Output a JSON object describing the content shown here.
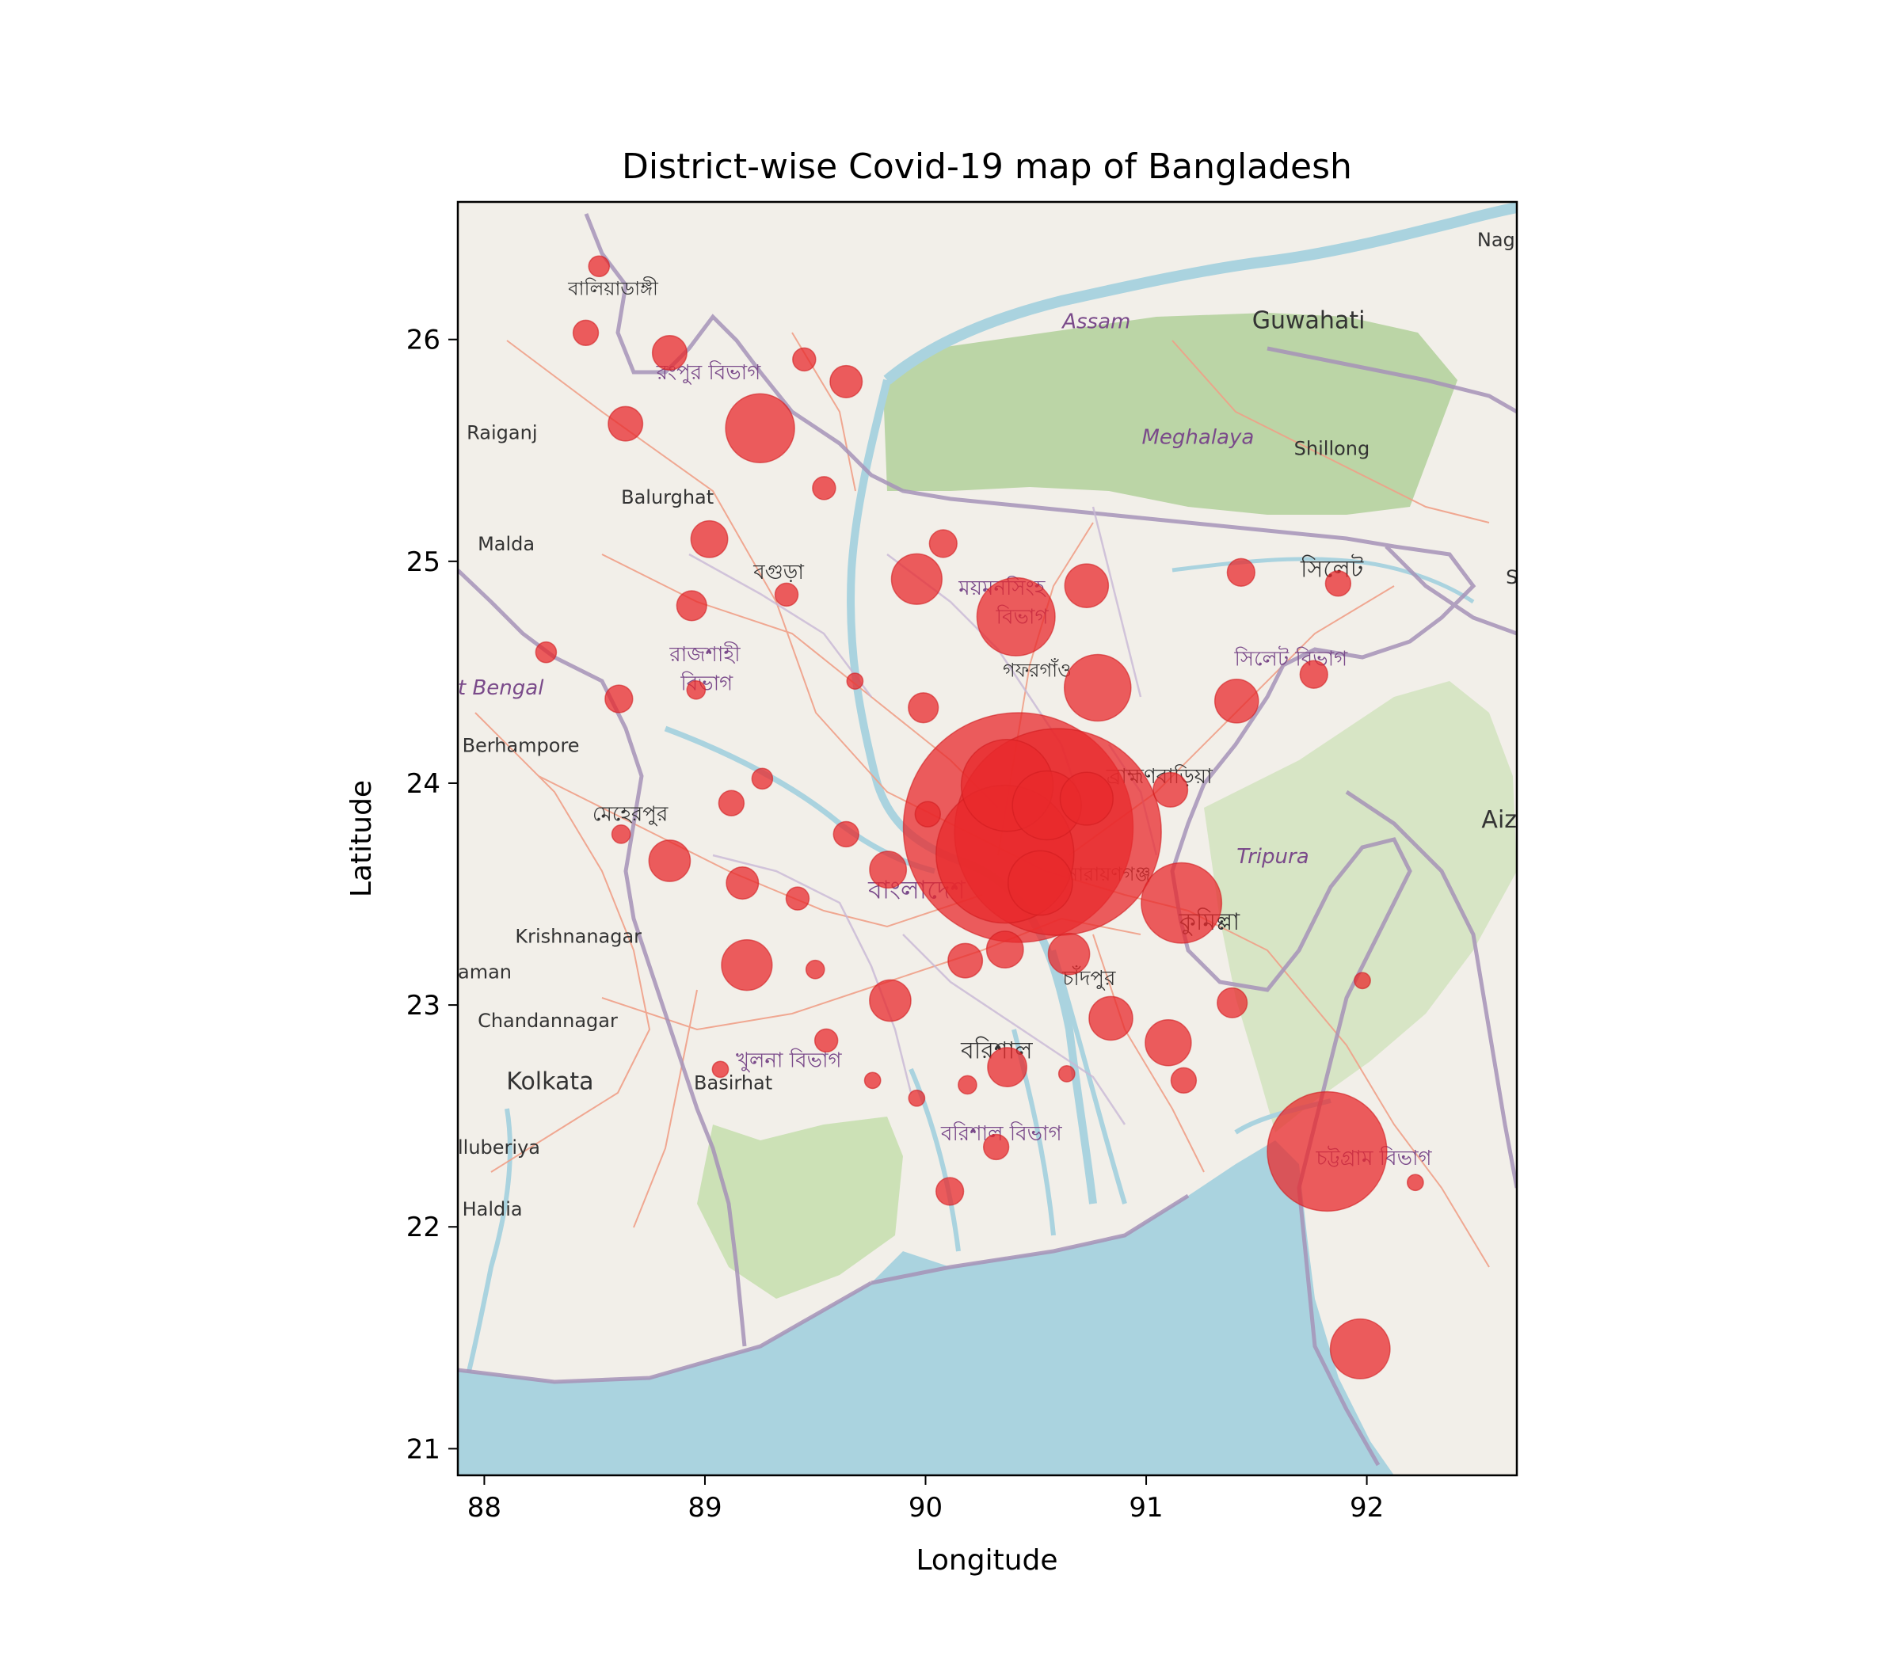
{
  "chart_data": {
    "type": "scatter",
    "title": "District-wise Covid-19 map of Bangladesh",
    "xlabel": "Longitude",
    "ylabel": "Latitude",
    "xlim": [
      87.88,
      92.68
    ],
    "ylim": [
      20.88,
      26.62
    ],
    "xticks": [
      88,
      89,
      90,
      91,
      92
    ],
    "yticks": [
      21,
      22,
      23,
      24,
      25,
      26
    ],
    "grid": false,
    "basemap": "OpenStreetMap tiles",
    "marker_color": "#e8292c",
    "marker_alpha": 0.75,
    "points": [
      {
        "lon": 88.52,
        "lat": 26.33,
        "size": 9
      },
      {
        "lon": 88.46,
        "lat": 26.03,
        "size": 11
      },
      {
        "lon": 88.84,
        "lat": 25.94,
        "size": 15
      },
      {
        "lon": 89.45,
        "lat": 25.91,
        "size": 10
      },
      {
        "lon": 89.64,
        "lat": 25.81,
        "size": 14
      },
      {
        "lon": 88.64,
        "lat": 25.62,
        "size": 15
      },
      {
        "lon": 89.25,
        "lat": 25.6,
        "size": 30
      },
      {
        "lon": 89.54,
        "lat": 25.33,
        "size": 10
      },
      {
        "lon": 89.02,
        "lat": 25.1,
        "size": 16
      },
      {
        "lon": 90.08,
        "lat": 25.08,
        "size": 12
      },
      {
        "lon": 89.96,
        "lat": 24.92,
        "size": 22
      },
      {
        "lon": 90.73,
        "lat": 24.89,
        "size": 19
      },
      {
        "lon": 91.43,
        "lat": 24.95,
        "size": 12
      },
      {
        "lon": 91.87,
        "lat": 24.9,
        "size": 11
      },
      {
        "lon": 89.37,
        "lat": 24.85,
        "size": 10
      },
      {
        "lon": 88.94,
        "lat": 24.8,
        "size": 13
      },
      {
        "lon": 90.41,
        "lat": 24.75,
        "size": 34
      },
      {
        "lon": 88.28,
        "lat": 24.59,
        "size": 9
      },
      {
        "lon": 91.76,
        "lat": 24.49,
        "size": 12
      },
      {
        "lon": 90.78,
        "lat": 24.43,
        "size": 29
      },
      {
        "lon": 88.96,
        "lat": 24.42,
        "size": 8
      },
      {
        "lon": 89.68,
        "lat": 24.46,
        "size": 7
      },
      {
        "lon": 88.61,
        "lat": 24.38,
        "size": 12
      },
      {
        "lon": 89.99,
        "lat": 24.34,
        "size": 13
      },
      {
        "lon": 91.41,
        "lat": 24.37,
        "size": 19
      },
      {
        "lon": 89.26,
        "lat": 24.02,
        "size": 9
      },
      {
        "lon": 90.37,
        "lat": 23.99,
        "size": 40
      },
      {
        "lon": 91.11,
        "lat": 23.97,
        "size": 15
      },
      {
        "lon": 90.73,
        "lat": 23.93,
        "size": 23
      },
      {
        "lon": 89.12,
        "lat": 23.91,
        "size": 11
      },
      {
        "lon": 90.01,
        "lat": 23.86,
        "size": 11
      },
      {
        "lon": 90.42,
        "lat": 23.8,
        "size": 100
      },
      {
        "lon": 90.55,
        "lat": 23.9,
        "size": 30
      },
      {
        "lon": 88.62,
        "lat": 23.77,
        "size": 8
      },
      {
        "lon": 89.64,
        "lat": 23.77,
        "size": 11
      },
      {
        "lon": 88.84,
        "lat": 23.65,
        "size": 18
      },
      {
        "lon": 89.83,
        "lat": 23.61,
        "size": 16
      },
      {
        "lon": 90.36,
        "lat": 23.68,
        "size": 60
      },
      {
        "lon": 90.6,
        "lat": 23.78,
        "size": 90
      },
      {
        "lon": 90.52,
        "lat": 23.55,
        "size": 28
      },
      {
        "lon": 89.17,
        "lat": 23.55,
        "size": 14
      },
      {
        "lon": 89.42,
        "lat": 23.48,
        "size": 10
      },
      {
        "lon": 91.16,
        "lat": 23.46,
        "size": 35
      },
      {
        "lon": 90.36,
        "lat": 23.25,
        "size": 16
      },
      {
        "lon": 90.65,
        "lat": 23.23,
        "size": 18
      },
      {
        "lon": 90.18,
        "lat": 23.2,
        "size": 15
      },
      {
        "lon": 89.19,
        "lat": 23.18,
        "size": 22
      },
      {
        "lon": 89.5,
        "lat": 23.16,
        "size": 8
      },
      {
        "lon": 91.98,
        "lat": 23.11,
        "size": 7
      },
      {
        "lon": 89.84,
        "lat": 23.02,
        "size": 18
      },
      {
        "lon": 91.39,
        "lat": 23.01,
        "size": 13
      },
      {
        "lon": 90.84,
        "lat": 22.94,
        "size": 19
      },
      {
        "lon": 91.1,
        "lat": 22.83,
        "size": 20
      },
      {
        "lon": 89.55,
        "lat": 22.84,
        "size": 10
      },
      {
        "lon": 90.37,
        "lat": 22.72,
        "size": 17
      },
      {
        "lon": 89.07,
        "lat": 22.71,
        "size": 7
      },
      {
        "lon": 90.64,
        "lat": 22.69,
        "size": 7
      },
      {
        "lon": 89.76,
        "lat": 22.66,
        "size": 7
      },
      {
        "lon": 91.17,
        "lat": 22.66,
        "size": 11
      },
      {
        "lon": 90.19,
        "lat": 22.64,
        "size": 8
      },
      {
        "lon": 89.96,
        "lat": 22.58,
        "size": 7
      },
      {
        "lon": 91.82,
        "lat": 22.34,
        "size": 52
      },
      {
        "lon": 90.32,
        "lat": 22.36,
        "size": 11
      },
      {
        "lon": 92.22,
        "lat": 22.2,
        "size": 7
      },
      {
        "lon": 90.11,
        "lat": 22.16,
        "size": 12
      },
      {
        "lon": 91.97,
        "lat": 21.45,
        "size": 26
      }
    ]
  },
  "map_labels": {
    "places": [
      {
        "text": "বালিয়াডাঙ্গী",
        "lon": 88.38,
        "lat": 26.2,
        "cls": "place-sm"
      },
      {
        "text": "রংপুর বিভাগ",
        "lon": 88.78,
        "lat": 25.82,
        "cls": "place-div"
      },
      {
        "text": "Raiganj",
        "lon": 87.92,
        "lat": 25.55,
        "cls": "place-sm"
      },
      {
        "text": "Balurghat",
        "lon": 88.62,
        "lat": 25.26,
        "cls": "place-sm"
      },
      {
        "text": "Malda",
        "lon": 87.97,
        "lat": 25.05,
        "cls": "place-sm"
      },
      {
        "text": "বগুড়া",
        "lon": 89.22,
        "lat": 24.92,
        "cls": "place-bn"
      },
      {
        "text": "রাজশাহী",
        "lon": 88.84,
        "lat": 24.55,
        "cls": "place-div"
      },
      {
        "text": "বিভাগ",
        "lon": 88.89,
        "lat": 24.42,
        "cls": "place-div"
      },
      {
        "text": "t Bengal",
        "lon": 87.88,
        "lat": 24.4,
        "cls": "place-reg"
      },
      {
        "text": "Berhampore",
        "lon": 87.9,
        "lat": 24.14,
        "cls": "place-sm"
      },
      {
        "text": "মেহেরপুর",
        "lon": 88.49,
        "lat": 23.83,
        "cls": "place-bn"
      },
      {
        "text": "Krishnanagar",
        "lon": 88.14,
        "lat": 23.28,
        "cls": "place-sm"
      },
      {
        "text": "aman",
        "lon": 87.88,
        "lat": 23.12,
        "cls": "place-sm"
      },
      {
        "text": "Chandannagar",
        "lon": 87.97,
        "lat": 22.9,
        "cls": "place-sm"
      },
      {
        "text": "Kolkata",
        "lon": 88.1,
        "lat": 22.62,
        "cls": "place-lg"
      },
      {
        "text": "Basirhat",
        "lon": 88.95,
        "lat": 22.62,
        "cls": "place-sm"
      },
      {
        "text": "lluberiya",
        "lon": 87.88,
        "lat": 22.33,
        "cls": "place-sm"
      },
      {
        "text": "Haldia",
        "lon": 87.9,
        "lat": 22.05,
        "cls": "place-sm"
      },
      {
        "text": "খুলনা বিভাগ",
        "lon": 89.14,
        "lat": 22.72,
        "cls": "place-div"
      },
      {
        "text": "বাংলাদেশ",
        "lon": 89.74,
        "lat": 23.48,
        "cls": "place-bd"
      },
      {
        "text": "ময়মনসিংহ",
        "lon": 90.15,
        "lat": 24.85,
        "cls": "place-div"
      },
      {
        "text": "বিভাগ",
        "lon": 90.32,
        "lat": 24.72,
        "cls": "place-div"
      },
      {
        "text": "গফরগাঁও",
        "lon": 90.35,
        "lat": 24.48,
        "cls": "place-sm"
      },
      {
        "text": "ব্রাহ্মণবাড়িয়া",
        "lon": 90.82,
        "lat": 24.0,
        "cls": "place-bn"
      },
      {
        "text": "নারায়ণগঞ্জ",
        "lon": 90.64,
        "lat": 23.56,
        "cls": "place-sm"
      },
      {
        "text": "কুমিল্লা",
        "lon": 91.15,
        "lat": 23.34,
        "cls": "place-lg"
      },
      {
        "text": "চাঁদপুর",
        "lon": 90.62,
        "lat": 23.09,
        "cls": "place-bn"
      },
      {
        "text": "বরিশাল",
        "lon": 90.16,
        "lat": 22.76,
        "cls": "place-lg"
      },
      {
        "text": "বরিশাল বিভাগ",
        "lon": 90.07,
        "lat": 22.39,
        "cls": "place-div"
      },
      {
        "text": "চট্টগ্রাম বিভাগ",
        "lon": 91.77,
        "lat": 22.28,
        "cls": "place-div"
      },
      {
        "text": "Tripura",
        "lon": 91.41,
        "lat": 23.64,
        "cls": "place-reg"
      },
      {
        "text": "সিলেট বিভাগ",
        "lon": 91.4,
        "lat": 24.53,
        "cls": "place-div"
      },
      {
        "text": "সিলেট",
        "lon": 91.7,
        "lat": 24.93,
        "cls": "place-lg"
      },
      {
        "text": "Shillong",
        "lon": 91.67,
        "lat": 25.48,
        "cls": "place-sm"
      },
      {
        "text": "Meghalaya",
        "lon": 90.98,
        "lat": 25.53,
        "cls": "place-reg"
      },
      {
        "text": "Assam",
        "lon": 90.62,
        "lat": 26.05,
        "cls": "place-reg"
      },
      {
        "text": "Guwahati",
        "lon": 91.48,
        "lat": 26.05,
        "cls": "place-lg"
      },
      {
        "text": "Nag",
        "lon": 92.5,
        "lat": 26.42,
        "cls": "place-sm"
      },
      {
        "text": "Aiz",
        "lon": 92.52,
        "lat": 23.8,
        "cls": "place-lg"
      },
      {
        "text": "S",
        "lon": 92.63,
        "lat": 24.9,
        "cls": "place-sm"
      }
    ]
  }
}
